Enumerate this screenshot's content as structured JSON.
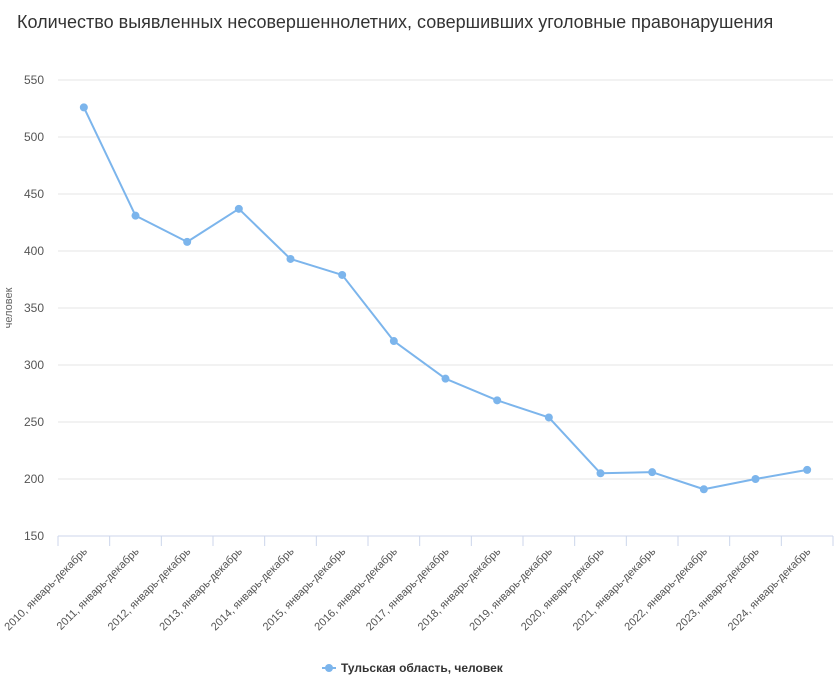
{
  "chart_data": {
    "type": "line",
    "title": "Количество выявленных несовершеннолетних, совершивших уголовные правонарушения",
    "ylabel": "человек",
    "xlabel": "",
    "ylim": [
      150,
      550
    ],
    "yticks": [
      150,
      200,
      250,
      300,
      350,
      400,
      450,
      500,
      550
    ],
    "grid": true,
    "legend_position": "bottom-center",
    "categories": [
      "2010, январь-декабрь",
      "2011, январь-декабрь",
      "2012, январь-декабрь",
      "2013, январь-декабрь",
      "2014, январь-декабрь",
      "2015, январь-декабрь",
      "2016, январь-декабрь",
      "2017, январь-декабрь",
      "2018, январь-декабрь",
      "2019, январь-декабрь",
      "2020, январь-декабрь",
      "2021, январь-декабрь",
      "2022, январь-декабрь",
      "2023, январь-декабрь",
      "2024, январь-декабрь"
    ],
    "series": [
      {
        "name": "Тульская область, человек",
        "color": "#7cb5ec",
        "values": [
          526,
          431,
          408,
          437,
          393,
          379,
          321,
          288,
          269,
          254,
          205,
          206,
          191,
          200,
          208
        ]
      }
    ]
  }
}
